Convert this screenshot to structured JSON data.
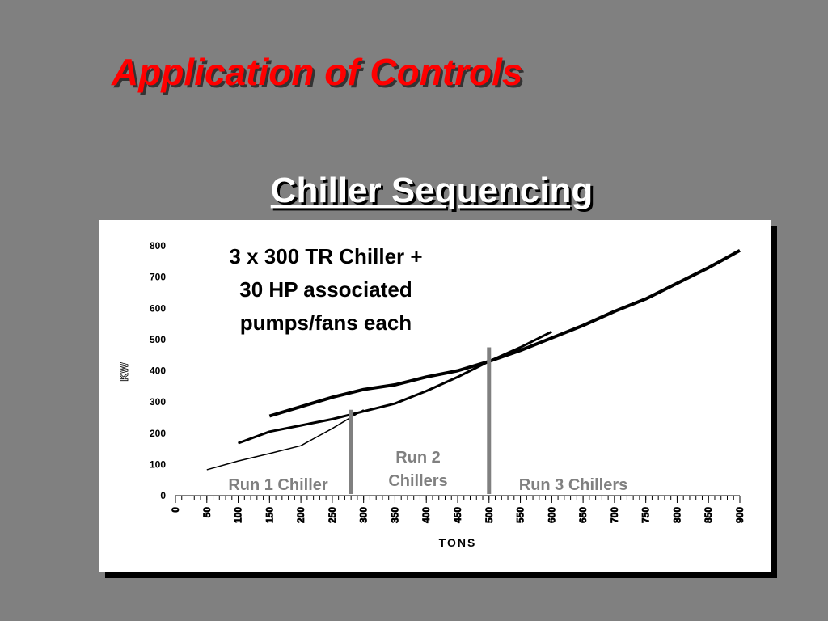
{
  "slide_title": "Application of Controls",
  "chart_data": {
    "type": "line",
    "title": "Chiller Sequencing",
    "xlabel": "TONS",
    "ylabel": "KW",
    "xlim": [
      0,
      900
    ],
    "xticks": [
      0,
      50,
      100,
      150,
      200,
      250,
      300,
      350,
      400,
      450,
      500,
      550,
      600,
      650,
      700,
      750,
      800,
      850,
      900
    ],
    "ylim": [
      0,
      800
    ],
    "yticks": [
      0,
      100,
      200,
      300,
      400,
      500,
      600,
      700,
      800
    ],
    "series": [
      {
        "color": "#000000",
        "x": [
          50,
          100,
          150,
          200,
          250,
          300
        ],
        "values": [
          83,
          111,
          135,
          160,
          215,
          275
        ]
      },
      {
        "color": "#000000",
        "x": [
          100,
          150,
          200,
          250,
          300,
          350,
          400,
          450,
          500,
          550,
          600
        ],
        "values": [
          168,
          205,
          225,
          245,
          270,
          295,
          335,
          380,
          430,
          475,
          525
        ]
      },
      {
        "color": "#000000",
        "x": [
          150,
          200,
          250,
          300,
          350,
          400,
          450,
          500,
          550,
          600,
          650,
          700,
          750,
          800,
          850,
          900
        ],
        "values": [
          255,
          285,
          315,
          340,
          355,
          380,
          400,
          430,
          465,
          505,
          545,
          590,
          630,
          680,
          730,
          785
        ]
      }
    ],
    "dividers": [
      {
        "x": 280,
        "top": 275
      },
      {
        "x": 500,
        "top": 475
      }
    ],
    "divider_color": "#808080",
    "annotations": [
      {
        "lines": [
          "3 x 300 TR Chiller +",
          "30 HP associated",
          "pumps/fans each"
        ]
      },
      {
        "lines": [
          "Run 1 Chiller"
        ]
      },
      {
        "lines": [
          "Run 2",
          "Chillers"
        ]
      },
      {
        "lines": [
          "Run 3 Chillers"
        ]
      }
    ]
  }
}
